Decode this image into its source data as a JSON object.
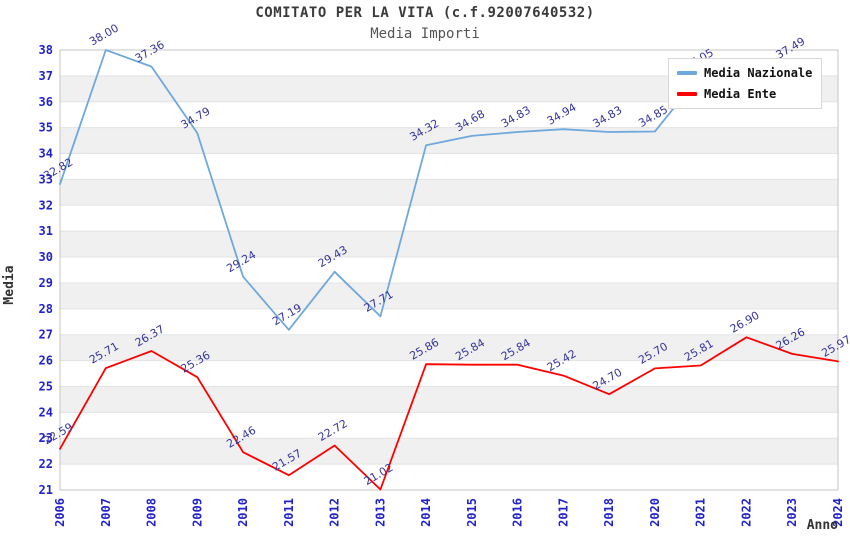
{
  "chart": {
    "title": "COMITATO PER LA VITA (c.f.92007640532)",
    "subtitle": "Media Importi"
  },
  "axes": {
    "x_label": "Anno",
    "y_label": "Media"
  },
  "legend": {
    "items": [
      {
        "label": "Media Nazionale",
        "color": "#6fa8dc"
      },
      {
        "label": "Media Ente",
        "color": "#ff0000"
      }
    ]
  },
  "chart_data": {
    "type": "line",
    "title": "COMITATO PER LA VITA (c.f.92007640532)",
    "subtitle": "Media Importi",
    "xlabel": "Anno",
    "ylabel": "Media",
    "x": [
      "2006",
      "2007",
      "2008",
      "2009",
      "2010",
      "2011",
      "2012",
      "2013",
      "2014",
      "2015",
      "2016",
      "2017",
      "2018",
      "2020",
      "2021",
      "2022",
      "2023",
      "2024"
    ],
    "series": [
      {
        "name": "Media Nazionale",
        "color": "#6fa8dc",
        "values": [
          32.82,
          38.0,
          37.36,
          34.79,
          29.24,
          27.19,
          29.43,
          27.71,
          34.32,
          34.68,
          34.83,
          34.94,
          34.83,
          34.85,
          37.05,
          null,
          37.49,
          null
        ]
      },
      {
        "name": "Media Ente",
        "color": "#ff0000",
        "values": [
          22.59,
          25.71,
          26.37,
          25.36,
          22.46,
          21.57,
          22.72,
          21.02,
          25.86,
          25.84,
          25.84,
          25.42,
          24.7,
          25.7,
          25.81,
          26.9,
          26.26,
          25.97
        ]
      }
    ],
    "ylim": [
      21,
      38
    ],
    "ytick_step": 1,
    "grid": "horizontal-unit-bands",
    "legend_position": "top-right"
  },
  "style": {
    "band_fill": "#f0f0f0",
    "gridline": "#e3e3e3",
    "plot_border": "#c6c6c6",
    "tick_label_color": "#2222cc",
    "data_label_color": "#34349c"
  }
}
